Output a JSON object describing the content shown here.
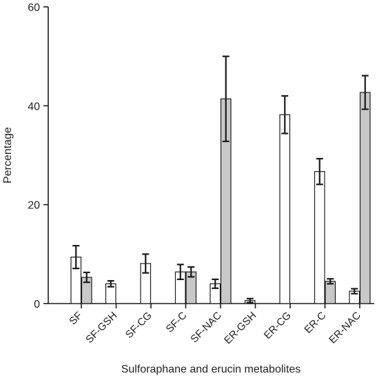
{
  "chart_data": {
    "type": "bar",
    "title": "",
    "xlabel": "Sulforaphane and erucin metabolites",
    "ylabel": "Percentage",
    "ylim": [
      0,
      60
    ],
    "yticks": [
      0,
      20,
      40,
      60
    ],
    "grid": false,
    "categories": [
      "SF",
      "SF-GSH",
      "SF-CG",
      "SF-C",
      "SF-NAC",
      "ER-GSH",
      "ER-CG",
      "ER-C",
      "ER-NAC"
    ],
    "series": [
      {
        "color": "#ffffff",
        "values": [
          9.4,
          4.0,
          8.1,
          6.4,
          4.0,
          0.6,
          38.2,
          26.7,
          2.5
        ],
        "errors": [
          2.3,
          0.6,
          1.9,
          1.5,
          0.9,
          0.4,
          3.8,
          2.6,
          0.5
        ]
      },
      {
        "color": "#c8c8c8",
        "values": [
          5.3,
          null,
          null,
          6.4,
          41.4,
          null,
          null,
          4.5,
          42.7
        ],
        "errors": [
          1.0,
          null,
          null,
          1.0,
          8.6,
          null,
          null,
          0.5,
          3.4
        ]
      }
    ]
  }
}
